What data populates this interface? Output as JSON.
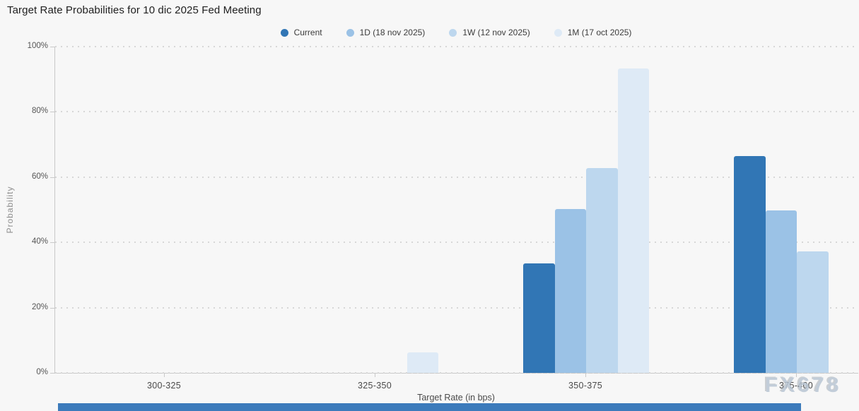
{
  "title": "Target Rate Probabilities for 10 dic 2025 Fed Meeting",
  "legend": [
    {
      "label": "Current",
      "color": "#3176b5"
    },
    {
      "label": "1D (18 nov 2025)",
      "color": "#9bc2e6"
    },
    {
      "label": "1W (12 nov 2025)",
      "color": "#bdd7ee"
    },
    {
      "label": "1M (17 oct 2025)",
      "color": "#deeaf6"
    }
  ],
  "watermark": "FX678",
  "colors": {
    "background": "#f7f7f7",
    "axis": "#c9c9c9",
    "gridline": "#d7d7d7",
    "bottom_bar": "#3c7bbb"
  },
  "chart_data": {
    "type": "bar",
    "title": "Target Rate Probabilities for 10 dic 2025 Fed Meeting",
    "xlabel": "Target Rate (in bps)",
    "ylabel": "Probability",
    "ylim": [
      0,
      100
    ],
    "ytick_labels": [
      "0%",
      "20%",
      "40%",
      "60%",
      "80%",
      "100%"
    ],
    "grid": "dotted-horizontal",
    "legend_position": "top-center",
    "categories": [
      "300-325",
      "325-350",
      "350-375",
      "375-400"
    ],
    "series": [
      {
        "name": "Current",
        "color": "#3176b5",
        "values": [
          0,
          0,
          33.5,
          66.5
        ]
      },
      {
        "name": "1D (18 nov 2025)",
        "color": "#9bc2e6",
        "values": [
          0,
          0,
          50.2,
          49.8
        ]
      },
      {
        "name": "1W (12 nov 2025)",
        "color": "#bdd7ee",
        "values": [
          0,
          0,
          62.8,
          37.2
        ]
      },
      {
        "name": "1M (17 oct 2025)",
        "color": "#deeaf6",
        "values": [
          0,
          6.3,
          93.4,
          0
        ]
      }
    ]
  }
}
